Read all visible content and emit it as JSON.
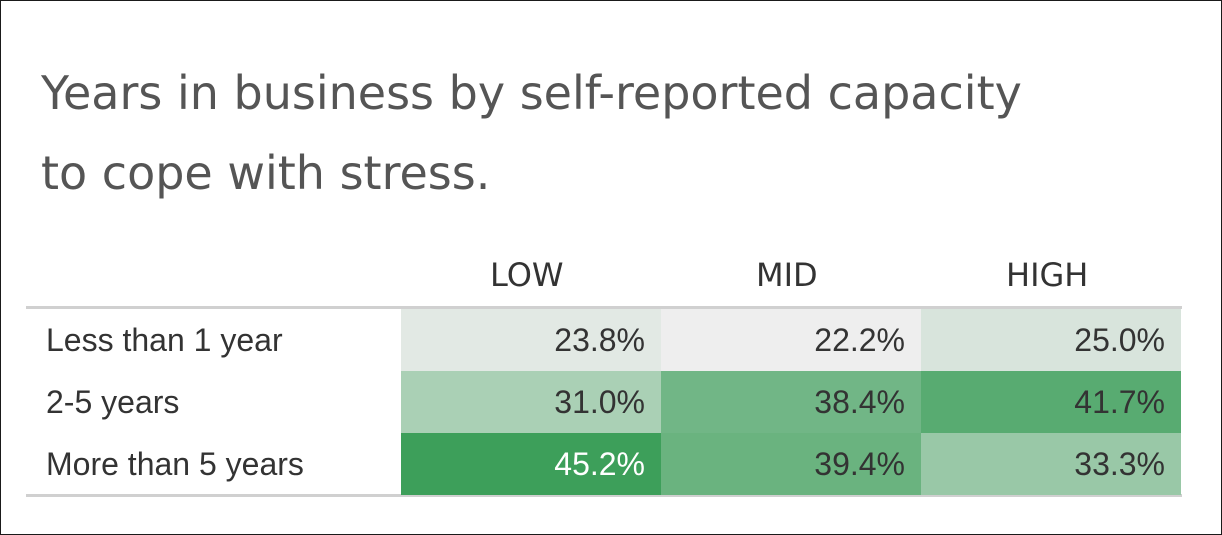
{
  "chart_data": {
    "type": "heatmap",
    "title": "Years in business by self-reported capacity to cope with stress.",
    "columns": [
      "LOW",
      "MID",
      "HIGH"
    ],
    "rows": [
      "Less than 1 year",
      "2-5 years",
      "More than 5 years"
    ],
    "values": [
      [
        23.8,
        22.2,
        25.0
      ],
      [
        31.0,
        38.4,
        41.7
      ],
      [
        45.2,
        39.4,
        33.3
      ]
    ],
    "labels": [
      [
        "23.8%",
        "22.2%",
        "25.0%"
      ],
      [
        "31.0%",
        "38.4%",
        "41.7%"
      ],
      [
        "45.2%",
        "39.4%",
        "33.3%"
      ]
    ],
    "color_scale": {
      "low": "#eeeeee",
      "high": "#3d9f5a"
    }
  }
}
